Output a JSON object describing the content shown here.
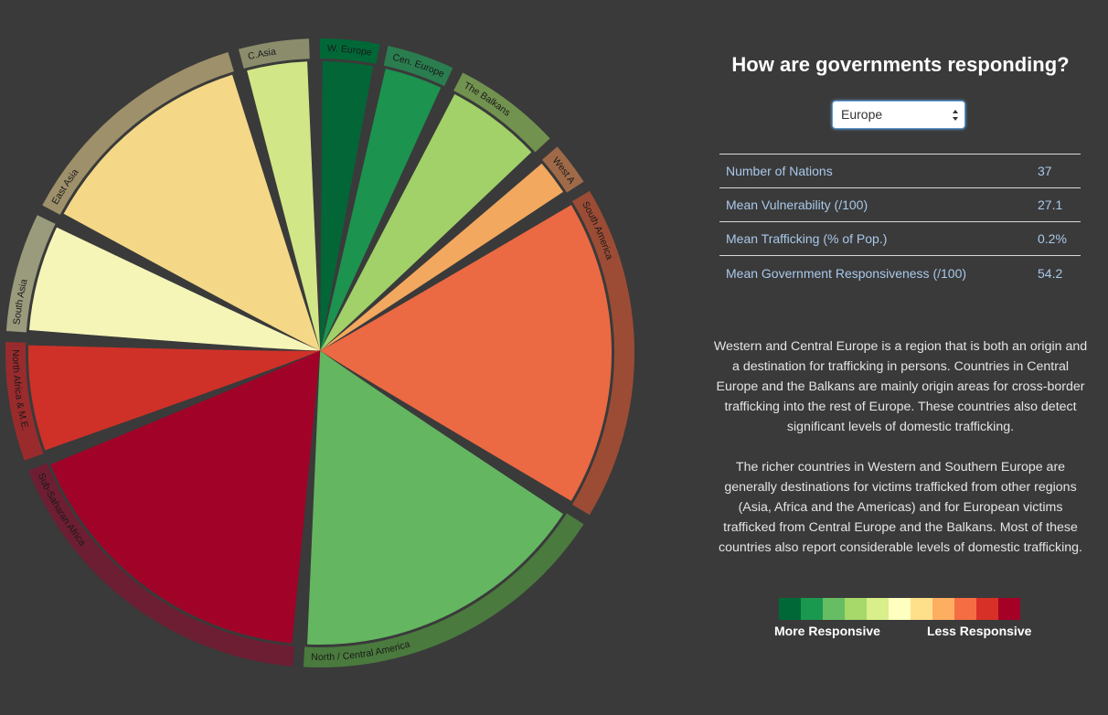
{
  "title": "How are governments responding?",
  "selected_region": "Europe",
  "stats": [
    {
      "label": "Number of Nations",
      "value": "37"
    },
    {
      "label": "Mean Vulnerability (/100)",
      "value": "27.1"
    },
    {
      "label": "Mean Trafficking (% of Pop.)",
      "value": "0.2%"
    },
    {
      "label": "Mean Government Responsiveness (/100)",
      "value": "54.2"
    }
  ],
  "description": [
    "Western and Central Europe is a region that is both an origin and a destination for trafficking in persons. Countries in Central Europe and the Balkans are mainly origin areas for cross-border trafficking into the rest of Europe. These countries also detect significant levels of domestic trafficking.",
    "The richer countries in Western and Southern Europe are generally destinations for victims trafficked from other regions (Asia, Africa and the Americas) and for European victims trafficked from Central Europe and the Balkans. Most of these countries also report considerable levels of domestic trafficking."
  ],
  "legend": {
    "colors": [
      "#006837",
      "#1a9850",
      "#66bd63",
      "#a6d96a",
      "#d9ef8b",
      "#ffffbf",
      "#fee08b",
      "#fdae61",
      "#f46d43",
      "#d73027",
      "#a50026"
    ],
    "left_label": "More Responsive",
    "right_label": "Less Responsive"
  },
  "chart_data": {
    "type": "chord",
    "regions": [
      {
        "name": "W. Europe",
        "color": "#006837",
        "start_deg": 0,
        "end_deg": 11
      },
      {
        "name": "Cen. Europe",
        "color": "#2a7d4f",
        "start_deg": 12.5,
        "end_deg": 25
      },
      {
        "name": "The Balkans",
        "color": "#72924f",
        "start_deg": 27,
        "end_deg": 47
      },
      {
        "name": "West Africa",
        "color": "#a06a49",
        "start_deg": 49,
        "end_deg": 57
      },
      {
        "name": "South America",
        "color": "#9c4c35",
        "start_deg": 59,
        "end_deg": 121
      },
      {
        "name": "North / Central America",
        "color": "#4a7a3e",
        "start_deg": 123,
        "end_deg": 183
      },
      {
        "name": "Sub-Saharan Africa",
        "color": "#6d1e32",
        "start_deg": 185,
        "end_deg": 248
      },
      {
        "name": "North Africa & M.E.",
        "color": "#9a2b2d",
        "start_deg": 250,
        "end_deg": 272
      },
      {
        "name": "South Asia",
        "color": "#9a9a7d",
        "start_deg": 274,
        "end_deg": 296
      },
      {
        "name": "East Asia",
        "color": "#9e906a",
        "start_deg": 298,
        "end_deg": 343
      },
      {
        "name": "C.Asia",
        "color": "#8a8c6c",
        "start_deg": 345,
        "end_deg": 358
      }
    ],
    "flows": [
      {
        "from": "W. Europe",
        "to": "W. Europe",
        "color": "#006837"
      },
      {
        "from": "Cen. Europe",
        "to": "W. Europe",
        "color": "#1a9850"
      },
      {
        "from": "The Balkans",
        "to": "W. Europe",
        "color": "#a6d96a"
      },
      {
        "from": "West Africa",
        "to": "W. Europe",
        "color": "#fdae61"
      },
      {
        "from": "South America",
        "to": "W. Europe",
        "color": "#f46d43"
      },
      {
        "from": "North / Central America",
        "to": "W. Europe",
        "color": "#66bd63"
      },
      {
        "from": "Sub-Saharan Africa",
        "to": "W. Europe",
        "color": "#a50026"
      },
      {
        "from": "North Africa & M.E.",
        "to": "W. Europe",
        "color": "#d73027"
      },
      {
        "from": "South Asia",
        "to": "W. Europe",
        "color": "#ffffbf"
      },
      {
        "from": "East Asia",
        "to": "W. Europe",
        "color": "#fee08b"
      },
      {
        "from": "C.Asia",
        "to": "W. Europe",
        "color": "#d9ef8b"
      }
    ]
  }
}
